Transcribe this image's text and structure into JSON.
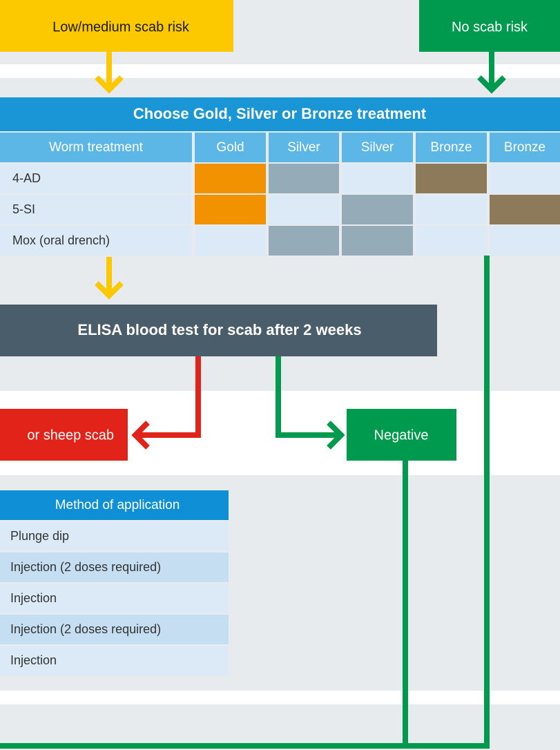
{
  "boxes": {
    "low_risk": "Low/medium scab risk",
    "no_risk": "No scab risk",
    "elisa": "ELISA blood test for scab after 2 weeks",
    "positive": "or sheep scab",
    "negative": "Negative"
  },
  "treatment_table": {
    "title": "Choose Gold, Silver or Bronze treatment",
    "header": [
      "Worm treatment",
      "Gold",
      "Silver",
      "Silver",
      "Bronze",
      "Bronze"
    ],
    "rows": [
      [
        "4-AD"
      ],
      [
        "5-SI"
      ],
      [
        "Mox (oral drench)"
      ]
    ]
  },
  "method_table": {
    "header": "Method of application",
    "rows": [
      "Plunge dip",
      "Injection (2 doses required)",
      "Injection",
      "Injection (2 doses required)",
      "Injection"
    ]
  }
}
